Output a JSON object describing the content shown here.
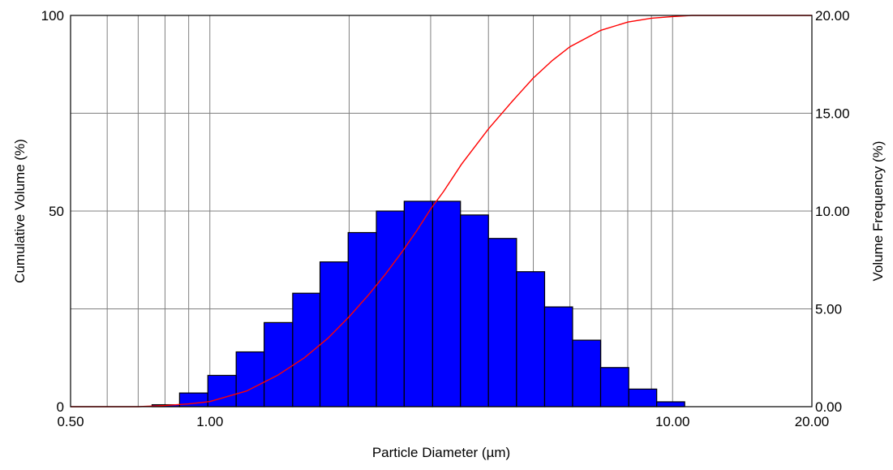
{
  "chart_data": {
    "type": "bar",
    "xlabel": "Particle Diameter (µm)",
    "ylabel_left": "Cumulative Volume (%)",
    "ylabel_right": "Volume Frequency (%)",
    "x_scale": "log",
    "xlim": [
      0.5,
      20
    ],
    "ylim_left": [
      0,
      100
    ],
    "ylim_right": [
      0,
      20
    ],
    "grid": true,
    "x_ticks": [
      {
        "value": 0.5,
        "label": "0.50"
      },
      {
        "value": 1,
        "label": "1.00"
      },
      {
        "value": 10,
        "label": "10.00"
      },
      {
        "value": 20,
        "label": "20.00"
      }
    ],
    "x_minor_grid": [
      0.6,
      0.7,
      0.8,
      0.9,
      2,
      3,
      4,
      5,
      6,
      7,
      8,
      9
    ],
    "y_left_ticks": [
      {
        "value": 0,
        "label": "0"
      },
      {
        "value": 50,
        "label": "50"
      },
      {
        "value": 100,
        "label": "100"
      }
    ],
    "y_left_grid": [
      0,
      25,
      50,
      75,
      100
    ],
    "y_right_ticks": [
      {
        "value": 0,
        "label": "0.00"
      },
      {
        "value": 5,
        "label": "5.00"
      },
      {
        "value": 10,
        "label": "10.00"
      },
      {
        "value": 15,
        "label": "15.00"
      },
      {
        "value": 20,
        "label": "20.00"
      }
    ],
    "colors": {
      "bar_fill": "#0000ff",
      "bar_stroke": "#000000",
      "curve": "#ff0000",
      "grid": "#808080"
    },
    "frequency_bins": [
      {
        "lo": 0.75,
        "hi": 0.86,
        "value": 0.1
      },
      {
        "lo": 0.86,
        "hi": 0.99,
        "value": 0.7
      },
      {
        "lo": 0.99,
        "hi": 1.14,
        "value": 1.6
      },
      {
        "lo": 1.14,
        "hi": 1.31,
        "value": 2.8
      },
      {
        "lo": 1.31,
        "hi": 1.51,
        "value": 4.3
      },
      {
        "lo": 1.51,
        "hi": 1.73,
        "value": 5.8
      },
      {
        "lo": 1.73,
        "hi": 1.99,
        "value": 7.4
      },
      {
        "lo": 1.99,
        "hi": 2.29,
        "value": 8.9
      },
      {
        "lo": 2.29,
        "hi": 2.63,
        "value": 10.0
      },
      {
        "lo": 2.63,
        "hi": 3.03,
        "value": 10.5
      },
      {
        "lo": 3.03,
        "hi": 3.48,
        "value": 10.5
      },
      {
        "lo": 3.48,
        "hi": 4.0,
        "value": 9.8
      },
      {
        "lo": 4.0,
        "hi": 4.6,
        "value": 8.6
      },
      {
        "lo": 4.6,
        "hi": 5.29,
        "value": 6.9
      },
      {
        "lo": 5.29,
        "hi": 6.08,
        "value": 5.1
      },
      {
        "lo": 6.08,
        "hi": 6.99,
        "value": 3.4
      },
      {
        "lo": 6.99,
        "hi": 8.04,
        "value": 2.0
      },
      {
        "lo": 8.04,
        "hi": 9.24,
        "value": 0.9
      },
      {
        "lo": 9.24,
        "hi": 10.62,
        "value": 0.25
      }
    ],
    "cumulative_curve": {
      "x": [
        0.5,
        0.6,
        0.7,
        0.8,
        0.9,
        1.0,
        1.2,
        1.4,
        1.6,
        1.8,
        2.0,
        2.2,
        2.4,
        2.6,
        2.8,
        3.0,
        3.2,
        3.5,
        4.0,
        4.5,
        5.0,
        5.5,
        6.0,
        7.0,
        8.0,
        9.0,
        10.0,
        11.0,
        12.0,
        14.0,
        20.0
      ],
      "y": [
        0,
        0,
        0,
        0.3,
        0.7,
        1.3,
        4,
        8,
        12.5,
        17.5,
        23,
        28.5,
        34,
        39.5,
        45,
        50.5,
        55,
        62,
        71,
        78,
        84,
        88.5,
        92,
        96.2,
        98.3,
        99.3,
        99.7,
        100,
        100,
        100,
        100
      ]
    }
  }
}
